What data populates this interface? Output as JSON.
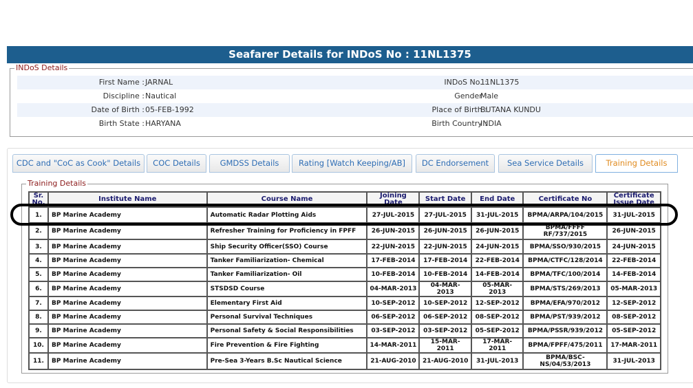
{
  "header": {
    "title": "Seafarer Details for INDoS No : 11NL1375"
  },
  "indos": {
    "legend": "INDoS Details",
    "rows": [
      [
        "First Name :",
        "JARNAL",
        "INDoS No. :",
        "11NL1375"
      ],
      [
        "Discipline :",
        "Nautical",
        "Gender :",
        "Male"
      ],
      [
        "Date of Birth :",
        "05-FEB-1992",
        "Place of Birth :",
        "BUTANA KUNDU"
      ],
      [
        "Birth State :",
        "HARYANA",
        "Birth Country :",
        "INDIA"
      ]
    ]
  },
  "tabs": [
    "CDC and \"CoC as Cook\" Details",
    "COC Details",
    "GMDSS Details",
    "Rating [Watch Keeping/AB]",
    "DC Endorsement",
    "Sea Service Details",
    "Training Details"
  ],
  "training": {
    "legend": "Training Details",
    "columns": [
      "Sr. No.",
      "Institute Name",
      "Course Name",
      "Joining Date",
      "Start Date",
      "End Date",
      "Certificate No",
      "Certificate Issue Date"
    ],
    "rows": [
      [
        "1.",
        "BP Marine Academy",
        "Automatic Radar Plotting Aids",
        "27-JUL-2015",
        "27-JUL-2015",
        "31-JUL-2015",
        "BPMA/ARPA/104/2015",
        "31-JUL-2015"
      ],
      [
        "2.",
        "BP Marine Academy",
        "Refresher Training for Proficiency in FPFF",
        "26-JUN-2015",
        "26-JUN-2015",
        "26-JUN-2015",
        "BPMA/FFFF RF/737/2015",
        "26-JUN-2015"
      ],
      [
        "3.",
        "BP Marine Academy",
        "Ship Security Officer(SSO) Course",
        "22-JUN-2015",
        "22-JUN-2015",
        "24-JUN-2015",
        "BPMA/SSO/930/2015",
        "24-JUN-2015"
      ],
      [
        "4.",
        "BP Marine Academy",
        "Tanker Familiarization- Chemical",
        "17-FEB-2014",
        "17-FEB-2014",
        "22-FEB-2014",
        "BPMA/CTFC/128/2014",
        "22-FEB-2014"
      ],
      [
        "5.",
        "BP Marine Academy",
        "Tanker Familiarization- Oil",
        "10-FEB-2014",
        "10-FEB-2014",
        "14-FEB-2014",
        "BPMA/TFC/100/2014",
        "14-FEB-2014"
      ],
      [
        "6.",
        "BP Marine Academy",
        "STSDSD Course",
        "04-MAR-2013",
        "04-MAR-2013",
        "05-MAR-2013",
        "BPMA/STS/269/2013",
        "05-MAR-2013"
      ],
      [
        "7.",
        "BP Marine Academy",
        "Elementary First Aid",
        "10-SEP-2012",
        "10-SEP-2012",
        "12-SEP-2012",
        "BPMA/EFA/970/2012",
        "12-SEP-2012"
      ],
      [
        "8.",
        "BP Marine Academy",
        "Personal Survival Techniques",
        "06-SEP-2012",
        "06-SEP-2012",
        "08-SEP-2012",
        "BPMA/PST/939/2012",
        "08-SEP-2012"
      ],
      [
        "9.",
        "BP Marine Academy",
        "Personal Safety & Social Responsibilities",
        "03-SEP-2012",
        "03-SEP-2012",
        "05-SEP-2012",
        "BPMA/PSSR/939/2012",
        "05-SEP-2012"
      ],
      [
        "10.",
        "BP Marine Academy",
        "Fire Prevention & Fire Fighting",
        "14-MAR-2011",
        "15-MAR-2011",
        "17-MAR-2011",
        "BPMA/FPFF/475/2011",
        "17-MAR-2011"
      ],
      [
        "11.",
        "BP Marine Academy",
        "Pre-Sea 3-Years B.Sc Nautical Science",
        "21-AUG-2010",
        "21-AUG-2010",
        "31-JUL-2013",
        "BPMA/BSC-NS/04/53/2013",
        "31-JUL-2013"
      ]
    ]
  }
}
